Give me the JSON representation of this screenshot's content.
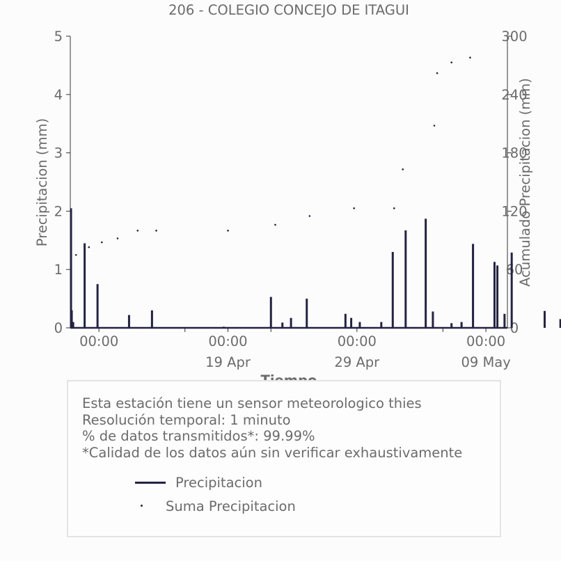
{
  "chart_data": {
    "type": "line",
    "title": "206 - COLEGIO CONCEJO DE ITAGUI",
    "xlabel": "Tiempo",
    "ylabel_left": "Precipitacion (mm)",
    "ylabel_right": "Acumulado Precipitacion (mm)",
    "ylim_left": [
      0,
      5
    ],
    "ylim_right": [
      0,
      300
    ],
    "yticks_left": [
      "0",
      "1",
      "2",
      "3",
      "4",
      "5"
    ],
    "yticks_right": [
      "0",
      "60",
      "120",
      "180",
      "240",
      "300"
    ],
    "xrange_days": [
      -2.0,
      28.5
    ],
    "xticks_major": [
      {
        "day": 0,
        "time": "00:00",
        "date": ""
      },
      {
        "day": 6,
        "time": "",
        "date": ""
      },
      {
        "day": 9,
        "time": "00:00",
        "date": ""
      },
      {
        "day": 12,
        "time": "",
        "date": ""
      },
      {
        "day": 18,
        "time": "00:00",
        "date": ""
      },
      {
        "day": 24,
        "time": "",
        "date": ""
      },
      {
        "day": 27,
        "time": "00:00",
        "date": ""
      }
    ],
    "xticks_labels": [
      {
        "day": 0,
        "time": "00:00",
        "date": ""
      },
      {
        "day": 9,
        "time": "00:00",
        "date": "19 Apr"
      },
      {
        "day": 18,
        "time": "00:00",
        "date": "29 Apr"
      },
      {
        "day": 27,
        "time": "00:00",
        "date": "09 May"
      }
    ],
    "grid": false,
    "series": [
      {
        "name": "Precipitacion",
        "kind": "line",
        "color": "#232342",
        "points": [
          [
            -1.95,
            2.05
          ],
          [
            -1.9,
            0.3
          ],
          [
            -1.8,
            0.1
          ],
          [
            -1.0,
            1.45
          ],
          [
            -0.1,
            0.75
          ],
          [
            2.1,
            0.22
          ],
          [
            3.7,
            0.3
          ],
          [
            8.7,
            0.02
          ],
          [
            12.0,
            0.53
          ],
          [
            12.8,
            0.09
          ],
          [
            13.4,
            0.17
          ],
          [
            14.5,
            0.5
          ],
          [
            17.2,
            0.24
          ],
          [
            17.6,
            0.17
          ],
          [
            18.2,
            0.1
          ],
          [
            19.7,
            0.1
          ],
          [
            20.5,
            1.3
          ],
          [
            21.4,
            1.67
          ],
          [
            22.8,
            1.87
          ],
          [
            23.3,
            0.28
          ],
          [
            24.6,
            0.08
          ],
          [
            25.3,
            0.1
          ],
          [
            26.1,
            1.44
          ],
          [
            27.6,
            1.13
          ],
          [
            27.8,
            1.07
          ],
          [
            28.3,
            0.24
          ],
          [
            28.8,
            1.29
          ],
          [
            31.1,
            0.29
          ],
          [
            32.2,
            0.15
          ],
          [
            35.8,
            0.26
          ],
          [
            36.1,
            1.77
          ],
          [
            37.5,
            0.16
          ],
          [
            38.6,
            0.18
          ],
          [
            39.0,
            0.36
          ],
          [
            40.1,
            0.1
          ],
          [
            40.5,
            1.9
          ],
          [
            41.9,
            0.06
          ]
        ]
      },
      {
        "name": "Suma Precipitacion",
        "kind": "dots",
        "color": "#232342",
        "points": [
          [
            -1.6,
            75
          ],
          [
            -0.7,
            83
          ],
          [
            0.2,
            88
          ],
          [
            1.3,
            92
          ],
          [
            2.7,
            100
          ],
          [
            4.0,
            100
          ],
          [
            9.0,
            100
          ],
          [
            12.3,
            106
          ],
          [
            14.7,
            115
          ],
          [
            17.8,
            123
          ],
          [
            20.6,
            123
          ],
          [
            21.2,
            163
          ],
          [
            23.4,
            208
          ],
          [
            23.6,
            262
          ],
          [
            24.6,
            273
          ],
          [
            25.9,
            278
          ]
        ]
      }
    ]
  },
  "info": {
    "line1": "Esta estación tiene un sensor meteorologico thies",
    "line2": "Resolución temporal: 1 minuto",
    "line3": "% de datos transmitidos*: 99.99%",
    "line4": "*Calidad de los datos aún sin verificar exhaustivamente"
  },
  "legend": {
    "item1": "Precipitacion",
    "item2": "Suma Precipitacion"
  }
}
